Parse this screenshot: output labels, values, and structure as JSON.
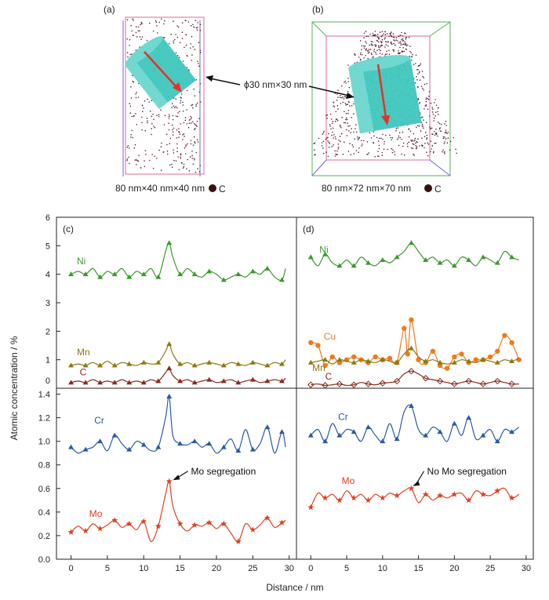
{
  "top": {
    "panel_a_label": "(a)",
    "panel_b_label": "(b)",
    "panel_a_caption": "80 nm×40 nm×40 nm",
    "panel_b_caption": "80 nm×72 nm×70 nm",
    "legend_label": "C",
    "cylinder_label": "ϕ30 nm×30 nm",
    "colors": {
      "cylinder": "#3fc7bd",
      "arrow": "#e8302a",
      "atoms": "#5a1e3a",
      "box_pink": "#e06a9a",
      "box_blue": "#6a6ad8",
      "box_green": "#58b058"
    }
  },
  "chart_data": {
    "type": "line",
    "x_axis": {
      "label": "Distance / nm",
      "range": [
        -2,
        31
      ],
      "ticks": [
        0,
        5,
        10,
        15,
        20,
        25,
        30
      ]
    },
    "y_axis_label": "Atomic concentration / %",
    "upper_y": {
      "range": [
        0,
        6
      ],
      "ticks": [
        0,
        1,
        2,
        3,
        4,
        5,
        6
      ]
    },
    "lower_y": {
      "range": [
        0,
        1.45
      ],
      "ticks": [
        0.0,
        0.2,
        0.4,
        0.6,
        0.8,
        1.0,
        1.2,
        1.4
      ]
    },
    "panels": [
      {
        "id": "c",
        "label": "(c)",
        "annotation": "Mo segregation",
        "upper_series": [
          {
            "name": "Ni",
            "color": "#3c9a2e",
            "marker": "triangle",
            "x": [
              0,
              1,
              2,
              3,
              4,
              5,
              6,
              7,
              8,
              9,
              10,
              11,
              12,
              13,
              13.5,
              14,
              15,
              16,
              17,
              18,
              19,
              20,
              21,
              22,
              23,
              24,
              25,
              26,
              27,
              28,
              29,
              29.5
            ],
            "y": [
              4.0,
              4.1,
              4.0,
              4.2,
              3.9,
              4.1,
              4.0,
              4.2,
              3.9,
              4.1,
              4.0,
              4.2,
              3.9,
              4.8,
              5.1,
              4.6,
              4.0,
              4.2,
              4.0,
              3.9,
              4.1,
              4.0,
              3.8,
              3.9,
              4.0,
              3.9,
              4.1,
              4.0,
              4.2,
              3.9,
              3.8,
              4.2
            ]
          },
          {
            "name": "Mn",
            "color": "#8a7a10",
            "marker": "triangle",
            "x": [
              0,
              1,
              2,
              3,
              4,
              5,
              6,
              7,
              8,
              9,
              10,
              11,
              12,
              13,
              13.5,
              14,
              15,
              16,
              17,
              18,
              19,
              20,
              21,
              22,
              23,
              24,
              25,
              26,
              27,
              28,
              29,
              29.5
            ],
            "y": [
              0.8,
              0.85,
              0.8,
              0.9,
              0.8,
              0.95,
              0.8,
              0.9,
              0.85,
              0.8,
              0.9,
              0.85,
              0.9,
              1.3,
              1.55,
              1.2,
              0.85,
              0.9,
              0.8,
              0.85,
              0.9,
              0.85,
              0.8,
              0.9,
              0.85,
              0.8,
              0.9,
              0.85,
              0.8,
              0.9,
              0.85,
              1.0
            ]
          },
          {
            "name": "C",
            "color": "#8c2a1c",
            "marker": "triangle",
            "x": [
              0,
              1,
              2,
              3,
              4,
              5,
              6,
              7,
              8,
              9,
              10,
              11,
              12,
              13,
              13.5,
              14,
              15,
              16,
              17,
              18,
              19,
              20,
              21,
              22,
              23,
              24,
              25,
              26,
              27,
              28,
              29,
              29.5
            ],
            "y": [
              0.2,
              0.25,
              0.2,
              0.3,
              0.2,
              0.25,
              0.2,
              0.3,
              0.2,
              0.25,
              0.2,
              0.3,
              0.25,
              0.55,
              0.7,
              0.45,
              0.25,
              0.3,
              0.2,
              0.25,
              0.3,
              0.2,
              0.25,
              0.3,
              0.2,
              0.25,
              0.3,
              0.2,
              0.25,
              0.3,
              0.25,
              0.35
            ]
          }
        ],
        "lower_series": [
          {
            "name": "Cr",
            "color": "#2a5aaa",
            "marker": "triangle",
            "x": [
              0,
              1,
              2,
              3,
              4,
              5,
              6,
              7,
              8,
              9,
              10,
              11,
              12,
              13,
              13.5,
              14,
              15,
              16,
              17,
              18,
              19,
              20,
              21,
              22,
              23,
              24,
              25,
              26,
              27,
              28,
              29,
              29.5
            ],
            "y": [
              0.95,
              0.9,
              0.93,
              0.95,
              1.0,
              0.92,
              1.05,
              0.98,
              0.93,
              1.0,
              0.97,
              0.92,
              0.95,
              1.2,
              1.38,
              1.05,
              0.98,
              0.97,
              1.0,
              0.95,
              0.98,
              0.9,
              0.95,
              1.02,
              0.92,
              1.1,
              0.93,
              0.98,
              1.12,
              0.9,
              1.08,
              0.95
            ]
          },
          {
            "name": "Mo",
            "color": "#e04020",
            "marker": "star",
            "x": [
              0,
              1,
              2,
              3,
              4,
              5,
              6,
              7,
              8,
              9,
              10,
              11,
              12,
              13,
              13.5,
              14,
              15,
              16,
              17,
              18,
              19,
              20,
              21,
              22,
              23,
              24,
              25,
              26,
              27,
              28,
              29,
              29.5
            ],
            "y": [
              0.23,
              0.28,
              0.24,
              0.3,
              0.26,
              0.29,
              0.33,
              0.27,
              0.3,
              0.25,
              0.32,
              0.15,
              0.28,
              0.55,
              0.66,
              0.45,
              0.3,
              0.24,
              0.29,
              0.28,
              0.31,
              0.26,
              0.3,
              0.22,
              0.15,
              0.3,
              0.25,
              0.29,
              0.35,
              0.27,
              0.31,
              0.33
            ]
          }
        ]
      },
      {
        "id": "d",
        "label": "(d)",
        "annotation": "No Mo segregation",
        "upper_series": [
          {
            "name": "Ni",
            "color": "#3c9a2e",
            "marker": "triangle",
            "x": [
              0,
              1,
              2,
              3,
              4,
              5,
              6,
              7,
              8,
              9,
              10,
              11,
              12,
              13,
              14,
              15,
              16,
              17,
              18,
              19,
              20,
              21,
              22,
              23,
              24,
              25,
              26,
              27,
              28,
              29
            ],
            "y": [
              4.6,
              4.3,
              4.7,
              4.4,
              4.3,
              4.5,
              4.3,
              4.6,
              4.4,
              4.3,
              4.5,
              4.4,
              4.6,
              4.8,
              5.1,
              4.8,
              4.5,
              4.6,
              4.4,
              4.5,
              4.3,
              4.6,
              4.5,
              4.3,
              4.6,
              4.5,
              4.4,
              4.8,
              4.6,
              4.5
            ]
          },
          {
            "name": "Cu",
            "color": "#f07a1a",
            "marker": "circle",
            "x": [
              0,
              1,
              2,
              3,
              4,
              5,
              6,
              7,
              8,
              9,
              10,
              11,
              12,
              13,
              13.5,
              14,
              15,
              16,
              17,
              18,
              19,
              20,
              21,
              22,
              23,
              24,
              25,
              26,
              27,
              28,
              29
            ],
            "y": [
              1.6,
              1.5,
              0.8,
              1.1,
              0.9,
              1.0,
              1.1,
              1.0,
              0.9,
              1.1,
              1.0,
              1.05,
              0.9,
              2.1,
              1.2,
              2.4,
              1.0,
              0.9,
              1.3,
              0.8,
              0.7,
              1.1,
              1.2,
              0.9,
              1.0,
              1.0,
              1.1,
              1.3,
              1.85,
              1.6,
              1.0
            ]
          },
          {
            "name": "Mn",
            "color": "#8a7a10",
            "marker": "triangle",
            "x": [
              0,
              1,
              2,
              3,
              4,
              5,
              6,
              7,
              8,
              9,
              10,
              11,
              12,
              13,
              14,
              15,
              16,
              17,
              18,
              19,
              20,
              21,
              22,
              23,
              24,
              25,
              26,
              27,
              28,
              29
            ],
            "y": [
              0.9,
              0.95,
              1.0,
              0.85,
              1.0,
              0.95,
              0.9,
              1.0,
              0.95,
              0.9,
              1.0,
              0.95,
              0.9,
              1.2,
              1.4,
              1.1,
              0.95,
              1.0,
              0.9,
              0.85,
              0.9,
              1.0,
              0.95,
              0.9,
              1.0,
              0.95,
              0.9,
              1.0,
              0.95,
              1.05
            ]
          },
          {
            "name": "C",
            "color": "#8c2a1c",
            "marker": "diamond",
            "x": [
              0,
              1,
              2,
              3,
              4,
              5,
              6,
              7,
              8,
              9,
              10,
              11,
              12,
              13,
              14,
              15,
              16,
              17,
              18,
              19,
              20,
              21,
              22,
              23,
              24,
              25,
              26,
              27,
              28,
              29
            ],
            "y": [
              0.12,
              0.15,
              0.1,
              0.12,
              0.15,
              0.1,
              0.12,
              0.2,
              0.15,
              0.12,
              0.18,
              0.2,
              0.25,
              0.5,
              0.6,
              0.5,
              0.35,
              0.3,
              0.25,
              0.2,
              0.15,
              0.2,
              0.25,
              0.2,
              0.15,
              0.2,
              0.25,
              0.2,
              0.15,
              0.15
            ]
          }
        ],
        "lower_series": [
          {
            "name": "Cr",
            "color": "#2a5aaa",
            "marker": "triangle",
            "x": [
              0,
              1,
              2,
              3,
              4,
              5,
              6,
              7,
              8,
              9,
              10,
              11,
              12,
              13,
              14,
              15,
              16,
              17,
              18,
              19,
              20,
              21,
              22,
              23,
              24,
              25,
              26,
              27,
              28,
              29
            ],
            "y": [
              1.05,
              1.1,
              1.0,
              1.15,
              1.05,
              1.1,
              1.08,
              1.0,
              1.12,
              1.05,
              1.0,
              1.15,
              1.02,
              1.25,
              1.3,
              1.1,
              1.05,
              1.12,
              1.08,
              1.0,
              1.15,
              1.05,
              1.2,
              1.02,
              1.05,
              1.1,
              1.0,
              1.1,
              1.08,
              1.12
            ]
          },
          {
            "name": "Mo",
            "color": "#e04020",
            "marker": "star",
            "x": [
              0,
              1,
              2,
              3,
              4,
              5,
              6,
              7,
              8,
              9,
              10,
              11,
              12,
              13,
              14,
              15,
              16,
              17,
              18,
              19,
              20,
              21,
              22,
              23,
              24,
              25,
              26,
              27,
              28,
              29
            ],
            "y": [
              0.44,
              0.56,
              0.52,
              0.55,
              0.5,
              0.58,
              0.52,
              0.55,
              0.5,
              0.55,
              0.52,
              0.56,
              0.54,
              0.58,
              0.6,
              0.48,
              0.55,
              0.5,
              0.54,
              0.52,
              0.55,
              0.56,
              0.5,
              0.58,
              0.55,
              0.54,
              0.58,
              0.6,
              0.52,
              0.55
            ]
          }
        ]
      }
    ]
  }
}
